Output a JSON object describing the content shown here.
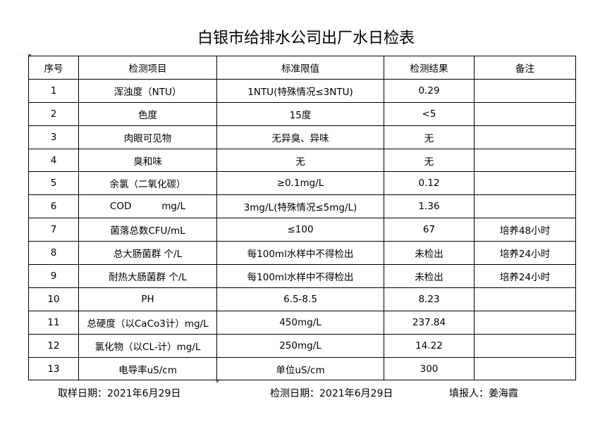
{
  "title": "白银市给排水公司出厂水日检表",
  "headers": [
    "序号",
    "检测项目",
    "标准限值",
    "检测结果",
    "备注"
  ],
  "rows": [
    [
      "1",
      "浑浊度（NTU）",
      "1NTU(特殊情况≤3NTU)",
      "0.29",
      ""
    ],
    [
      "2",
      "色度",
      "15度",
      "<5",
      ""
    ],
    [
      "3",
      "肉眼可见物",
      "无异臭、异味",
      "无",
      ""
    ],
    [
      "4",
      "臭和味",
      "无",
      "无",
      ""
    ],
    [
      "5",
      "余氯（二氧化碳）",
      "≥0.1mg/L",
      "0.12",
      ""
    ],
    [
      "6",
      "COD          mg/L",
      "3mg/L(特殊情况≤5mg/L)",
      "1.36",
      ""
    ],
    [
      "7",
      "菌落总数CFU/mL",
      "≤100",
      "67",
      "培养48小时"
    ],
    [
      "8",
      "总大肠菌群 个/L",
      "每100ml水样中不得检出",
      "未检出",
      "培养24小时"
    ],
    [
      "9",
      "耐热大肠菌群 个/L",
      "每100ml水样中不得检出",
      "未检出",
      "培养24小时"
    ],
    [
      "10",
      "PH",
      "6.5-8.5",
      "8.23",
      ""
    ],
    [
      "11",
      "总硬度（以CaCo3计）mg/L",
      "450mg/L",
      "237.84",
      ""
    ],
    [
      "12",
      "氯化物（以CL-计）mg/L",
      "250mg/L",
      "14.22",
      ""
    ],
    [
      "13",
      "电导率uS/cm",
      "单位uS/cm",
      "300",
      ""
    ]
  ],
  "footer": {
    "sample_date": "取样日期：2021年6月29日",
    "test_date": "检测日期：2021年6月29日",
    "reporter": "填报人：姜海霞"
  }
}
